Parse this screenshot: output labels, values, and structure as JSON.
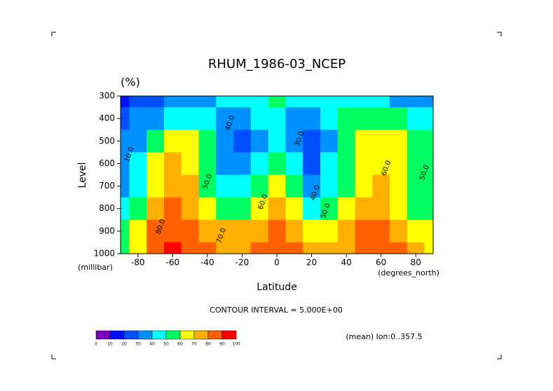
{
  "chart_data": {
    "type": "contour",
    "title": "RHUM_1986-03_NCEP",
    "units": "(%)",
    "ylabel": "Level",
    "yunits": "(millibar)",
    "xlabel": "Latitude",
    "xunits": "(degrees_north)",
    "note": "CONTOUR INTERVAL = 5.000E+00",
    "footnote": "(mean) lon:0..357.5",
    "x": [
      -90,
      -80,
      -70,
      -60,
      -50,
      -40,
      -30,
      -20,
      -10,
      0,
      10,
      20,
      30,
      40,
      50,
      60,
      70,
      80,
      90
    ],
    "y": [
      300,
      400,
      500,
      600,
      700,
      800,
      900,
      1000
    ],
    "values": [
      [
        10,
        25,
        28,
        30,
        32,
        35,
        40,
        45,
        48,
        50,
        48,
        45,
        45,
        45,
        42,
        40,
        38,
        35,
        35
      ],
      [
        25,
        30,
        35,
        40,
        45,
        40,
        30,
        35,
        40,
        45,
        35,
        30,
        40,
        50,
        55,
        55,
        50,
        45,
        40
      ],
      [
        30,
        35,
        55,
        65,
        60,
        50,
        30,
        25,
        35,
        40,
        30,
        20,
        35,
        55,
        60,
        60,
        60,
        55,
        50
      ],
      [
        30,
        40,
        60,
        70,
        65,
        50,
        30,
        30,
        40,
        50,
        40,
        25,
        40,
        55,
        60,
        65,
        60,
        55,
        50
      ],
      [
        35,
        45,
        65,
        75,
        70,
        55,
        40,
        40,
        50,
        60,
        50,
        35,
        45,
        55,
        65,
        70,
        65,
        55,
        50
      ],
      [
        45,
        55,
        75,
        80,
        75,
        65,
        55,
        55,
        65,
        70,
        60,
        45,
        50,
        60,
        70,
        70,
        65,
        55,
        55
      ],
      [
        55,
        60,
        80,
        85,
        85,
        75,
        70,
        70,
        75,
        80,
        75,
        65,
        65,
        70,
        80,
        80,
        75,
        65,
        60
      ],
      [
        55,
        65,
        85,
        90,
        85,
        80,
        75,
        75,
        80,
        80,
        80,
        75,
        70,
        75,
        85,
        85,
        80,
        75,
        65
      ]
    ],
    "xlim": [
      -90,
      90
    ],
    "ylim": [
      1000,
      300
    ],
    "xticks": [
      -80,
      -60,
      -40,
      -20,
      0,
      20,
      40,
      60,
      80
    ],
    "yticks": [
      300,
      400,
      500,
      600,
      700,
      800,
      900,
      1000
    ],
    "colorbar": {
      "levels": [
        0,
        10,
        20,
        30,
        40,
        50,
        60,
        70,
        80,
        90,
        100
      ],
      "colors": [
        "#8000c0",
        "#0010ff",
        "#0050ff",
        "#0090ff",
        "#00ffff",
        "#00ff60",
        "#ffff00",
        "#ffb000",
        "#ff6000",
        "#ff0000"
      ]
    },
    "annotations": [
      {
        "text": "40.0",
        "lat": -27,
        "level": 420
      },
      {
        "text": "30.0",
        "lat": 13,
        "level": 490
      },
      {
        "text": "50.0",
        "lat": -40,
        "level": 680
      },
      {
        "text": "60.0",
        "lat": -8,
        "level": 770
      },
      {
        "text": "40.0",
        "lat": 22,
        "level": 730
      },
      {
        "text": "50.0",
        "lat": 28,
        "level": 810
      },
      {
        "text": "70.0",
        "lat": -32,
        "level": 920
      },
      {
        "text": "80.0",
        "lat": -67,
        "level": 880
      },
      {
        "text": "60.0",
        "lat": 63,
        "level": 620
      },
      {
        "text": "50.0",
        "lat": 85,
        "level": 640
      },
      {
        "text": "10.0",
        "lat": -85,
        "level": 560
      }
    ]
  }
}
